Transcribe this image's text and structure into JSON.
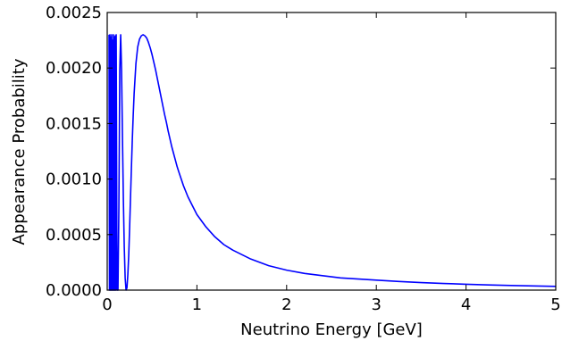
{
  "chart_data": {
    "type": "line",
    "title": "",
    "xlabel": "Neutrino Energy [GeV]",
    "ylabel": "Appearance Probability",
    "xlim": [
      0,
      5
    ],
    "ylim": [
      0,
      0.0025
    ],
    "x_ticks": [
      0,
      1,
      2,
      3,
      4,
      5
    ],
    "x_tick_labels": [
      "0",
      "1",
      "2",
      "3",
      "4",
      "5"
    ],
    "y_ticks": [
      0,
      0.0005,
      0.001,
      0.0015,
      0.002,
      0.0025
    ],
    "y_tick_labels": [
      "0.0000",
      "0.0005",
      "0.0010",
      "0.0015",
      "0.0020",
      "0.0025"
    ],
    "grid": false,
    "legend": "none",
    "series": [
      {
        "color": "#0000ff",
        "x": [
          0.02,
          0.025,
          0.03,
          0.035,
          0.04,
          0.045,
          0.05,
          0.055,
          0.06,
          0.065,
          0.07,
          0.075,
          0.08,
          0.085,
          0.09,
          0.095,
          0.1,
          0.11,
          0.12,
          0.13,
          0.14,
          0.15,
          0.16,
          0.17,
          0.18,
          0.19,
          0.2,
          0.21,
          0.22,
          0.23,
          0.24,
          0.25,
          0.26,
          0.27,
          0.28,
          0.29,
          0.3,
          0.32,
          0.34,
          0.36,
          0.38,
          0.4,
          0.42,
          0.44,
          0.46,
          0.48,
          0.5,
          0.52,
          0.54,
          0.56,
          0.58,
          0.6,
          0.62,
          0.64,
          0.66,
          0.68,
          0.7,
          0.72,
          0.74,
          0.76,
          0.78,
          0.8,
          0.85,
          0.9,
          0.95,
          1.0,
          1.1,
          1.2,
          1.3,
          1.4,
          1.5,
          1.6,
          1.7,
          1.8,
          1.9,
          2.0,
          2.2,
          2.4,
          2.6,
          2.8,
          3.0,
          3.25,
          3.5,
          3.75,
          4.0,
          4.25,
          4.5,
          4.75,
          5.0
        ],
        "y": [
          0.0023,
          0.0,
          0.0023,
          0.0,
          0.00228,
          0.0,
          0.0023,
          0.0,
          0.00225,
          0.0,
          0.0023,
          0.0,
          0.00228,
          0.0,
          0.00229,
          0.0,
          0.0023,
          0.0,
          0.0,
          0.00075,
          0.00198,
          0.0023,
          0.00198,
          0.00138,
          0.00082,
          0.00039,
          0.00011,
          0.0,
          2e-05,
          0.00014,
          0.00032,
          0.00057,
          0.00084,
          0.00111,
          0.00136,
          0.00158,
          0.00177,
          0.00204,
          0.00219,
          0.00226,
          0.00229,
          0.0023,
          0.00229,
          0.00227,
          0.00223,
          0.00218,
          0.00212,
          0.00205,
          0.00198,
          0.0019,
          0.00182,
          0.00174,
          0.00166,
          0.00158,
          0.00151,
          0.00143,
          0.00136,
          0.00129,
          0.00123,
          0.00117,
          0.00111,
          0.00106,
          0.00094,
          0.00084,
          0.00076,
          0.00068,
          0.00057,
          0.00048,
          0.00041,
          0.00036,
          0.00032,
          0.00028,
          0.00025,
          0.00022,
          0.0002,
          0.00018,
          0.00015,
          0.00013,
          0.00011,
          0.0001,
          9e-05,
          7.8e-05,
          6.8e-05,
          6e-05,
          5.3e-05,
          4.7e-05,
          4.2e-05,
          3.8e-05,
          3.4e-05
        ]
      }
    ]
  }
}
